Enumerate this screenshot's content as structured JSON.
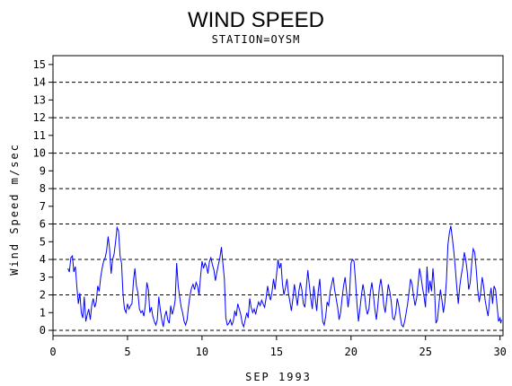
{
  "chart_data": {
    "type": "line",
    "title": "WIND SPEED",
    "subtitle": "STATION=OYSM",
    "xlabel": "SEP  1993",
    "ylabel": "Wind  Speed  m/sec",
    "xlim": [
      0,
      30.2
    ],
    "ylim": [
      0,
      15.5
    ],
    "x_ticks": [
      0,
      5,
      10,
      15,
      20,
      25,
      30
    ],
    "y_ticks": [
      0,
      1,
      2,
      3,
      4,
      5,
      6,
      7,
      8,
      9,
      10,
      11,
      12,
      13,
      14,
      15
    ],
    "reference_lines": [
      0,
      2,
      4,
      6,
      8,
      10,
      12,
      14
    ],
    "line_color": "#0000ff",
    "series": [
      {
        "values": [
          [
            1.0,
            3.5
          ],
          [
            1.1,
            3.3
          ],
          [
            1.2,
            4.1
          ],
          [
            1.3,
            4.2
          ],
          [
            1.4,
            3.3
          ],
          [
            1.5,
            3.6
          ],
          [
            1.6,
            2.5
          ],
          [
            1.7,
            1.5
          ],
          [
            1.8,
            2.1
          ],
          [
            1.9,
            1.0
          ],
          [
            2.0,
            0.7
          ],
          [
            2.1,
            1.9
          ],
          [
            2.2,
            0.5
          ],
          [
            2.3,
            0.9
          ],
          [
            2.4,
            1.2
          ],
          [
            2.5,
            0.6
          ],
          [
            2.6,
            1.4
          ],
          [
            2.7,
            1.8
          ],
          [
            2.8,
            1.3
          ],
          [
            2.9,
            1.6
          ],
          [
            3.0,
            2.5
          ],
          [
            3.1,
            2.2
          ],
          [
            3.2,
            3.0
          ],
          [
            3.3,
            3.5
          ],
          [
            3.4,
            3.9
          ],
          [
            3.5,
            4.1
          ],
          [
            3.6,
            4.5
          ],
          [
            3.7,
            5.3
          ],
          [
            3.8,
            4.6
          ],
          [
            3.9,
            3.2
          ],
          [
            4.0,
            4.0
          ],
          [
            4.1,
            4.3
          ],
          [
            4.2,
            5.0
          ],
          [
            4.3,
            5.8
          ],
          [
            4.4,
            5.6
          ],
          [
            4.5,
            4.2
          ],
          [
            4.6,
            3.8
          ],
          [
            4.7,
            2.0
          ],
          [
            4.8,
            1.2
          ],
          [
            4.9,
            1.0
          ],
          [
            5.0,
            1.5
          ],
          [
            5.1,
            1.2
          ],
          [
            5.2,
            1.4
          ],
          [
            5.3,
            1.5
          ],
          [
            5.4,
            2.8
          ],
          [
            5.5,
            3.5
          ],
          [
            5.6,
            2.5
          ],
          [
            5.7,
            2.1
          ],
          [
            5.8,
            1.2
          ],
          [
            5.9,
            1.0
          ],
          [
            6.0,
            1.1
          ],
          [
            6.1,
            0.8
          ],
          [
            6.2,
            1.5
          ],
          [
            6.3,
            2.7
          ],
          [
            6.4,
            2.3
          ],
          [
            6.5,
            1.0
          ],
          [
            6.6,
            1.3
          ],
          [
            6.7,
            0.8
          ],
          [
            6.8,
            0.5
          ],
          [
            6.9,
            0.3
          ],
          [
            7.0,
            0.6
          ],
          [
            7.1,
            1.9
          ],
          [
            7.2,
            1.2
          ],
          [
            7.3,
            0.6
          ],
          [
            7.4,
            0.2
          ],
          [
            7.5,
            0.8
          ],
          [
            7.6,
            1.1
          ],
          [
            7.7,
            0.6
          ],
          [
            7.8,
            0.4
          ],
          [
            7.9,
            1.4
          ],
          [
            8.0,
            0.9
          ],
          [
            8.1,
            1.2
          ],
          [
            8.2,
            1.7
          ],
          [
            8.3,
            3.8
          ],
          [
            8.4,
            2.5
          ],
          [
            8.5,
            1.9
          ],
          [
            8.6,
            1.3
          ],
          [
            8.7,
            1.0
          ],
          [
            8.8,
            0.5
          ],
          [
            8.9,
            0.3
          ],
          [
            9.0,
            0.6
          ],
          [
            9.1,
            1.4
          ],
          [
            9.2,
            2.0
          ],
          [
            9.3,
            2.4
          ],
          [
            9.4,
            2.6
          ],
          [
            9.5,
            2.3
          ],
          [
            9.6,
            2.7
          ],
          [
            9.7,
            2.5
          ],
          [
            9.8,
            2.0
          ],
          [
            9.9,
            3.0
          ],
          [
            10.0,
            3.9
          ],
          [
            10.1,
            3.5
          ],
          [
            10.2,
            3.8
          ],
          [
            10.3,
            3.6
          ],
          [
            10.4,
            3.2
          ],
          [
            10.5,
            3.9
          ],
          [
            10.6,
            4.1
          ],
          [
            10.7,
            3.7
          ],
          [
            10.8,
            3.4
          ],
          [
            10.9,
            2.8
          ],
          [
            11.0,
            3.3
          ],
          [
            11.1,
            3.7
          ],
          [
            11.2,
            4.1
          ],
          [
            11.3,
            4.7
          ],
          [
            11.4,
            3.8
          ],
          [
            11.5,
            2.9
          ],
          [
            11.6,
            0.7
          ],
          [
            11.7,
            0.3
          ],
          [
            11.8,
            0.4
          ],
          [
            11.9,
            0.6
          ],
          [
            12.0,
            0.3
          ],
          [
            12.1,
            0.5
          ],
          [
            12.2,
            1.1
          ],
          [
            12.3,
            0.8
          ],
          [
            12.4,
            1.5
          ],
          [
            12.5,
            1.2
          ],
          [
            12.6,
            0.9
          ],
          [
            12.7,
            0.4
          ],
          [
            12.8,
            0.2
          ],
          [
            12.9,
            0.6
          ],
          [
            13.0,
            1.0
          ],
          [
            13.1,
            0.7
          ],
          [
            13.2,
            1.8
          ],
          [
            13.3,
            1.3
          ],
          [
            13.4,
            1.0
          ],
          [
            13.5,
            1.2
          ],
          [
            13.6,
            0.9
          ],
          [
            13.7,
            1.3
          ],
          [
            13.8,
            1.6
          ],
          [
            13.9,
            1.4
          ],
          [
            14.0,
            1.7
          ],
          [
            14.1,
            1.5
          ],
          [
            14.2,
            1.3
          ],
          [
            14.3,
            1.8
          ],
          [
            14.4,
            2.5
          ],
          [
            14.5,
            2.0
          ],
          [
            14.6,
            1.7
          ],
          [
            14.7,
            2.2
          ],
          [
            14.8,
            2.9
          ],
          [
            14.9,
            2.3
          ],
          [
            15.0,
            3.1
          ],
          [
            15.1,
            4.0
          ],
          [
            15.2,
            3.5
          ],
          [
            15.3,
            3.8
          ],
          [
            15.4,
            2.6
          ],
          [
            15.5,
            2.0
          ],
          [
            15.6,
            2.4
          ],
          [
            15.7,
            2.9
          ],
          [
            15.8,
            2.1
          ],
          [
            15.9,
            1.6
          ],
          [
            16.0,
            1.1
          ],
          [
            16.1,
            1.8
          ],
          [
            16.2,
            2.6
          ],
          [
            16.3,
            2.0
          ],
          [
            16.4,
            1.4
          ],
          [
            16.5,
            2.2
          ],
          [
            16.6,
            2.7
          ],
          [
            16.7,
            2.3
          ],
          [
            16.8,
            1.5
          ],
          [
            16.9,
            1.3
          ],
          [
            17.0,
            2.4
          ],
          [
            17.1,
            3.4
          ],
          [
            17.2,
            2.6
          ],
          [
            17.3,
            1.8
          ],
          [
            17.4,
            1.2
          ],
          [
            17.5,
            2.5
          ],
          [
            17.6,
            1.8
          ],
          [
            17.7,
            1.1
          ],
          [
            17.8,
            2.2
          ],
          [
            17.9,
            2.9
          ],
          [
            18.0,
            1.6
          ],
          [
            18.1,
            0.5
          ],
          [
            18.2,
            0.3
          ],
          [
            18.3,
            0.8
          ],
          [
            18.4,
            1.6
          ],
          [
            18.5,
            1.4
          ],
          [
            18.6,
            2.2
          ],
          [
            18.7,
            2.6
          ],
          [
            18.8,
            3.0
          ],
          [
            18.9,
            2.3
          ],
          [
            19.0,
            1.8
          ],
          [
            19.1,
            1.3
          ],
          [
            19.2,
            0.6
          ],
          [
            19.3,
            1.0
          ],
          [
            19.4,
            1.8
          ],
          [
            19.5,
            2.5
          ],
          [
            19.6,
            3.0
          ],
          [
            19.7,
            2.2
          ],
          [
            19.8,
            1.3
          ],
          [
            19.9,
            2.0
          ],
          [
            20.0,
            3.8
          ],
          [
            20.1,
            4.0
          ],
          [
            20.2,
            3.9
          ],
          [
            20.3,
            2.8
          ],
          [
            20.4,
            1.5
          ],
          [
            20.5,
            0.5
          ],
          [
            20.6,
            1.2
          ],
          [
            20.7,
            2.0
          ],
          [
            20.8,
            2.6
          ],
          [
            20.9,
            2.1
          ],
          [
            21.0,
            1.3
          ],
          [
            21.1,
            0.9
          ],
          [
            21.2,
            1.2
          ],
          [
            21.3,
            2.2
          ],
          [
            21.4,
            2.7
          ],
          [
            21.5,
            2.0
          ],
          [
            21.6,
            1.2
          ],
          [
            21.7,
            0.6
          ],
          [
            21.8,
            1.4
          ],
          [
            21.9,
            2.4
          ],
          [
            22.0,
            2.9
          ],
          [
            22.1,
            2.3
          ],
          [
            22.2,
            1.4
          ],
          [
            22.3,
            1.0
          ],
          [
            22.4,
            1.8
          ],
          [
            22.5,
            2.6
          ],
          [
            22.6,
            2.2
          ],
          [
            22.7,
            1.6
          ],
          [
            22.8,
            0.7
          ],
          [
            22.9,
            0.6
          ],
          [
            23.0,
            1.0
          ],
          [
            23.1,
            1.8
          ],
          [
            23.2,
            1.4
          ],
          [
            23.3,
            0.8
          ],
          [
            23.4,
            0.3
          ],
          [
            23.5,
            0.2
          ],
          [
            23.6,
            0.5
          ],
          [
            23.7,
            1.0
          ],
          [
            23.8,
            1.5
          ],
          [
            23.9,
            2.2
          ],
          [
            24.0,
            2.9
          ],
          [
            24.1,
            2.6
          ],
          [
            24.2,
            1.9
          ],
          [
            24.3,
            1.4
          ],
          [
            24.4,
            1.8
          ],
          [
            24.5,
            2.6
          ],
          [
            24.6,
            3.5
          ],
          [
            24.7,
            3.0
          ],
          [
            24.8,
            2.4
          ],
          [
            24.9,
            1.9
          ],
          [
            25.0,
            1.3
          ],
          [
            25.1,
            3.6
          ],
          [
            25.2,
            2.1
          ],
          [
            25.3,
            2.8
          ],
          [
            25.4,
            2.2
          ],
          [
            25.5,
            3.5
          ],
          [
            25.6,
            2.4
          ],
          [
            25.7,
            0.4
          ],
          [
            25.8,
            0.6
          ],
          [
            25.9,
            1.5
          ],
          [
            26.0,
            2.3
          ],
          [
            26.1,
            1.7
          ],
          [
            26.2,
            1.0
          ],
          [
            26.3,
            1.6
          ],
          [
            26.4,
            2.8
          ],
          [
            26.5,
            4.8
          ],
          [
            26.6,
            5.5
          ],
          [
            26.7,
            5.9
          ],
          [
            26.8,
            5.2
          ],
          [
            26.9,
            4.4
          ],
          [
            27.0,
            3.5
          ],
          [
            27.1,
            2.4
          ],
          [
            27.2,
            1.5
          ],
          [
            27.3,
            2.5
          ],
          [
            27.4,
            3.1
          ],
          [
            27.5,
            3.6
          ],
          [
            27.6,
            4.4
          ],
          [
            27.7,
            4.0
          ],
          [
            27.8,
            3.3
          ],
          [
            27.9,
            2.3
          ],
          [
            28.0,
            2.7
          ],
          [
            28.1,
            3.8
          ],
          [
            28.2,
            4.6
          ],
          [
            28.3,
            4.4
          ],
          [
            28.4,
            3.5
          ],
          [
            28.5,
            2.3
          ],
          [
            28.6,
            1.6
          ],
          [
            28.7,
            2.1
          ],
          [
            28.8,
            3.0
          ],
          [
            28.9,
            2.5
          ],
          [
            29.0,
            1.7
          ],
          [
            29.1,
            1.2
          ],
          [
            29.2,
            0.8
          ],
          [
            29.3,
            1.8
          ],
          [
            29.4,
            2.4
          ],
          [
            29.5,
            1.5
          ],
          [
            29.6,
            2.5
          ],
          [
            29.7,
            2.3
          ],
          [
            29.8,
            1.4
          ],
          [
            29.9,
            0.5
          ],
          [
            30.0,
            0.7
          ],
          [
            30.05,
            0.4
          ],
          [
            30.1,
            0.6
          ]
        ]
      }
    ]
  }
}
